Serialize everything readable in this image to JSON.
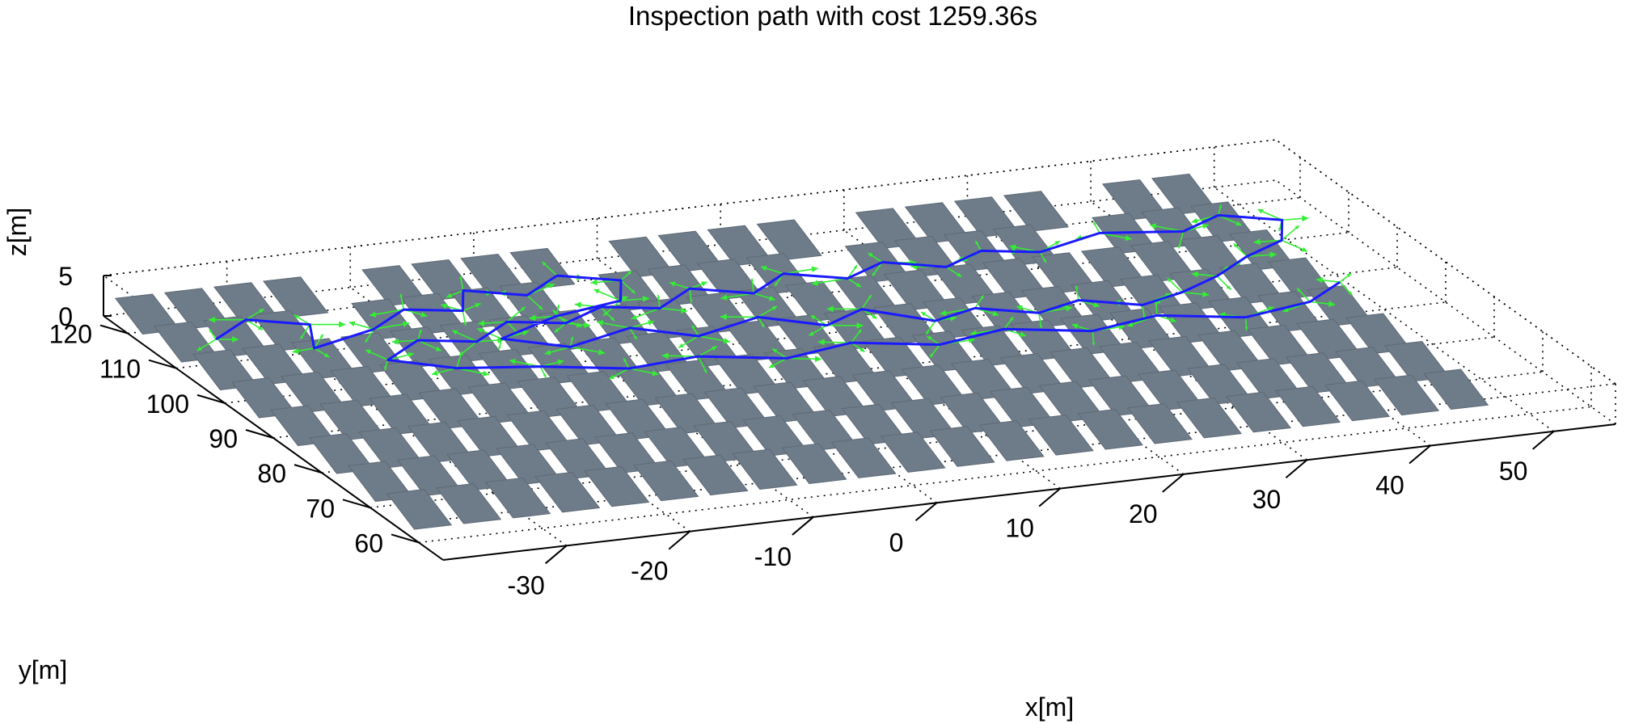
{
  "chart_data": {
    "type": "3d-line",
    "title": "Inspection path with cost 1259.36s",
    "xlabel": "x[m]",
    "ylabel": "y[m]",
    "zlabel": "z[m]",
    "xlim": [
      -40,
      55
    ],
    "ylim": [
      55,
      125
    ],
    "zlim": [
      0,
      5
    ],
    "xticks": [
      -30,
      -20,
      -10,
      0,
      10,
      20,
      30,
      40,
      50
    ],
    "yticks": [
      60,
      70,
      80,
      90,
      100,
      110,
      120
    ],
    "zticks": [
      0,
      5
    ],
    "grid": true,
    "colors": {
      "path": "#1a1aff",
      "viewpoints": "#33ee33",
      "panels": "#6e7b88"
    },
    "panel_rows_y": [
      65,
      73,
      81,
      89,
      97,
      105,
      113,
      121
    ],
    "panel_cols_x": [
      -38,
      -34,
      -30,
      -26,
      -22,
      -18,
      -14,
      -10,
      -6,
      -2,
      2,
      6,
      10,
      14,
      18,
      22,
      26,
      30,
      34,
      38,
      42,
      46
    ],
    "series": [
      {
        "label": "inspection path",
        "points": [
          [
            -36,
            112,
            2
          ],
          [
            -32,
            116,
            2
          ],
          [
            -28,
            113,
            2
          ],
          [
            -30,
            107,
            2
          ],
          [
            -24,
            110,
            2
          ],
          [
            -20,
            114,
            2
          ],
          [
            -16,
            112,
            2
          ],
          [
            -14,
            117,
            2
          ],
          [
            -10,
            114,
            2
          ],
          [
            -6,
            118,
            2
          ],
          [
            -2,
            115,
            2
          ],
          [
            -4,
            110,
            2
          ],
          [
            -10,
            108,
            2
          ],
          [
            -16,
            104,
            2
          ],
          [
            -12,
            100,
            2
          ],
          [
            -6,
            103,
            2
          ],
          [
            -2,
            99,
            2
          ],
          [
            4,
            102,
            2
          ],
          [
            8,
            98,
            2
          ],
          [
            12,
            101,
            2
          ],
          [
            16,
            96,
            2
          ],
          [
            20,
            98,
            2
          ],
          [
            24,
            95,
            2
          ],
          [
            28,
            97,
            2
          ],
          [
            32,
            94,
            2
          ],
          [
            36,
            96,
            2
          ],
          [
            40,
            99,
            2
          ],
          [
            44,
            103,
            2
          ],
          [
            48,
            106,
            2
          ],
          [
            50,
            111,
            2
          ],
          [
            46,
            114,
            2
          ],
          [
            42,
            111,
            2
          ],
          [
            36,
            113,
            2
          ],
          [
            30,
            110,
            2
          ],
          [
            26,
            112,
            2
          ],
          [
            22,
            109,
            2
          ],
          [
            18,
            112,
            2
          ],
          [
            14,
            109,
            2
          ],
          [
            10,
            112,
            2
          ],
          [
            6,
            108,
            2
          ],
          [
            2,
            111,
            2
          ],
          [
            -2,
            107,
            2
          ],
          [
            -6,
            109,
            2
          ],
          [
            -10,
            106,
            2
          ],
          [
            -14,
            108,
            2
          ],
          [
            -18,
            104,
            2
          ],
          [
            -22,
            106,
            2
          ],
          [
            -26,
            102,
            2
          ],
          [
            -22,
            98,
            2
          ],
          [
            -16,
            96,
            2
          ],
          [
            -10,
            93,
            2
          ],
          [
            -4,
            94,
            2
          ],
          [
            2,
            91,
            2
          ],
          [
            8,
            93,
            2
          ],
          [
            14,
            90,
            2
          ],
          [
            20,
            92,
            2
          ],
          [
            26,
            89,
            2
          ],
          [
            32,
            91,
            2
          ],
          [
            38,
            88,
            2
          ],
          [
            44,
            90,
            2
          ],
          [
            48,
            94,
            2
          ]
        ]
      }
    ]
  }
}
